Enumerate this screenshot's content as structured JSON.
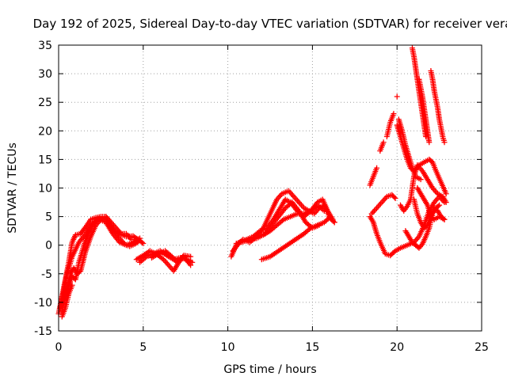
{
  "chart_data": {
    "type": "scatter",
    "title": "Day 192 of 2025, Sidereal Day-to-day VTEC variation (SDTVAR) for receiver vera",
    "xlabel": "GPS time / hours",
    "ylabel": "SDTVAR / TECUs",
    "xlim": [
      0,
      25
    ],
    "ylim": [
      -15,
      35
    ],
    "x_ticks": [
      0,
      5,
      10,
      15,
      20,
      25
    ],
    "y_ticks": [
      -15,
      -10,
      -5,
      0,
      5,
      10,
      15,
      20,
      25,
      30,
      35
    ],
    "grid": true,
    "legend": "none",
    "marker": "plus",
    "color": "#ff0000",
    "tracks": [
      [
        [
          0.0,
          -12.0
        ],
        [
          0.2,
          -9.0
        ],
        [
          0.4,
          -6.0
        ],
        [
          0.6,
          -3.0
        ],
        [
          0.8,
          0.5
        ],
        [
          1.0,
          1.8
        ],
        [
          1.3,
          2.0
        ],
        [
          1.6,
          3.2
        ],
        [
          1.9,
          4.5
        ],
        [
          2.2,
          4.8
        ],
        [
          2.5,
          5.0
        ],
        [
          2.8,
          5.0
        ],
        [
          3.0,
          4.0
        ],
        [
          3.3,
          2.5
        ],
        [
          3.6,
          1.2
        ],
        [
          3.9,
          0.2
        ],
        [
          4.2,
          -0.2
        ],
        [
          4.5,
          0.2
        ],
        [
          4.8,
          0.8
        ],
        [
          5.0,
          0.3
        ]
      ],
      [
        [
          0.1,
          -11.0
        ],
        [
          0.3,
          -8.0
        ],
        [
          0.5,
          -5.0
        ],
        [
          0.8,
          -2.0
        ],
        [
          1.2,
          0.5
        ],
        [
          1.6,
          2.0
        ],
        [
          2.0,
          3.8
        ],
        [
          2.4,
          4.5
        ],
        [
          2.8,
          4.0
        ],
        [
          3.2,
          2.0
        ],
        [
          3.6,
          0.5
        ],
        [
          4.0,
          0.0
        ],
        [
          4.4,
          0.5
        ],
        [
          4.8,
          1.2
        ]
      ],
      [
        [
          0.2,
          -11.5
        ],
        [
          0.4,
          -9.0
        ],
        [
          0.6,
          -7.0
        ],
        [
          0.8,
          -5.5
        ],
        [
          1.0,
          -6.0
        ],
        [
          1.2,
          -3.0
        ],
        [
          1.5,
          0.0
        ],
        [
          1.8,
          2.5
        ],
        [
          2.1,
          4.0
        ],
        [
          2.4,
          4.8
        ],
        [
          2.7,
          4.5
        ],
        [
          3.0,
          3.5
        ],
        [
          3.3,
          2.5
        ],
        [
          3.6,
          2.0
        ],
        [
          4.0,
          1.5
        ],
        [
          4.4,
          1.6
        ],
        [
          4.7,
          1.0
        ]
      ],
      [
        [
          0.3,
          -10.0
        ],
        [
          0.5,
          -8.0
        ],
        [
          0.7,
          -5.0
        ],
        [
          0.9,
          -4.0
        ],
        [
          1.1,
          -5.0
        ],
        [
          1.3,
          -4.5
        ],
        [
          1.6,
          -1.0
        ],
        [
          1.9,
          1.5
        ],
        [
          2.2,
          3.5
        ],
        [
          2.5,
          4.5
        ],
        [
          2.8,
          5.0
        ],
        [
          3.1,
          4.0
        ],
        [
          3.4,
          3.0
        ],
        [
          3.7,
          2.0
        ],
        [
          4.0,
          2.0
        ],
        [
          4.3,
          1.0
        ]
      ],
      [
        [
          0.2,
          -12.5
        ],
        [
          0.4,
          -11.0
        ],
        [
          0.6,
          -8.5
        ],
        [
          0.8,
          -7.0
        ]
      ],
      [
        [
          4.6,
          -2.5
        ],
        [
          5.0,
          -1.8
        ],
        [
          5.4,
          -1.0
        ],
        [
          5.8,
          -1.6
        ],
        [
          6.2,
          -2.5
        ],
        [
          6.5,
          -3.5
        ],
        [
          6.8,
          -4.5
        ],
        [
          7.1,
          -3.0
        ],
        [
          7.4,
          -2.0
        ],
        [
          7.8,
          -3.5
        ]
      ],
      [
        [
          4.8,
          -3.0
        ],
        [
          5.2,
          -2.0
        ],
        [
          5.6,
          -1.5
        ],
        [
          6.0,
          -1.0
        ],
        [
          6.4,
          -1.8
        ],
        [
          6.8,
          -2.5
        ],
        [
          7.2,
          -2.2
        ],
        [
          7.6,
          -2.5
        ],
        [
          7.9,
          -3.0
        ]
      ],
      [
        [
          5.5,
          -2.2
        ],
        [
          5.9,
          -1.5
        ],
        [
          6.3,
          -1.0
        ],
        [
          6.7,
          -2.0
        ],
        [
          7.0,
          -3.0
        ],
        [
          7.4,
          -1.8
        ],
        [
          7.8,
          -2.0
        ]
      ],
      [
        [
          10.2,
          -2.0
        ],
        [
          10.5,
          0.0
        ],
        [
          10.9,
          1.0
        ],
        [
          11.3,
          0.5
        ],
        [
          11.7,
          1.5
        ],
        [
          12.1,
          3.0
        ],
        [
          12.5,
          5.5
        ],
        [
          12.9,
          8.0
        ],
        [
          13.2,
          9.0
        ],
        [
          13.6,
          9.5
        ],
        [
          13.9,
          8.5
        ],
        [
          14.2,
          7.5
        ],
        [
          14.5,
          6.5
        ],
        [
          14.8,
          6.0
        ],
        [
          15.1,
          5.5
        ],
        [
          15.4,
          6.5
        ],
        [
          15.7,
          7.0
        ],
        [
          16.0,
          5.0
        ],
        [
          16.3,
          4.0
        ]
      ],
      [
        [
          10.3,
          -1.0
        ],
        [
          10.7,
          0.5
        ],
        [
          11.1,
          1.0
        ],
        [
          11.5,
          1.5
        ],
        [
          11.9,
          2.5
        ],
        [
          12.3,
          3.0
        ],
        [
          12.7,
          4.5
        ],
        [
          13.1,
          6.5
        ],
        [
          13.4,
          8.0
        ],
        [
          13.7,
          7.5
        ],
        [
          14.1,
          6.0
        ],
        [
          14.5,
          5.0
        ],
        [
          14.9,
          6.0
        ],
        [
          15.3,
          7.5
        ],
        [
          15.6,
          8.0
        ],
        [
          15.9,
          6.0
        ],
        [
          16.2,
          4.5
        ]
      ],
      [
        [
          10.5,
          0.3
        ],
        [
          10.9,
          0.6
        ],
        [
          11.3,
          1.0
        ],
        [
          11.7,
          1.2
        ],
        [
          12.1,
          1.8
        ],
        [
          12.5,
          2.5
        ],
        [
          12.9,
          3.5
        ],
        [
          13.3,
          4.5
        ],
        [
          13.7,
          5.0
        ],
        [
          14.1,
          5.5
        ],
        [
          14.5,
          5.5
        ],
        [
          14.9,
          6.0
        ],
        [
          15.3,
          7.0
        ],
        [
          15.7,
          6.0
        ]
      ],
      [
        [
          12.0,
          -2.5
        ],
        [
          12.5,
          -2.0
        ],
        [
          13.0,
          -1.0
        ],
        [
          13.5,
          0.0
        ],
        [
          14.0,
          1.0
        ],
        [
          14.5,
          2.0
        ],
        [
          14.9,
          3.0
        ],
        [
          15.3,
          3.5
        ],
        [
          15.7,
          4.0
        ],
        [
          16.0,
          4.8
        ],
        [
          16.3,
          4.0
        ]
      ],
      [
        [
          12.2,
          2.0
        ],
        [
          12.6,
          3.5
        ],
        [
          13.0,
          5.0
        ],
        [
          13.4,
          6.5
        ],
        [
          13.8,
          7.5
        ],
        [
          14.2,
          6.0
        ],
        [
          14.6,
          4.0
        ],
        [
          15.0,
          3.0
        ],
        [
          15.4,
          3.5
        ]
      ],
      [
        [
          18.4,
          10.5
        ],
        [
          18.6,
          12.0
        ],
        [
          18.8,
          13.5
        ]
      ],
      [
        [
          19.0,
          16.5
        ],
        [
          19.2,
          18.0
        ]
      ],
      [
        [
          19.4,
          19.0
        ],
        [
          19.6,
          21.5
        ],
        [
          19.8,
          23.0
        ]
      ],
      [
        [
          20.0,
          26.0
        ]
      ],
      [
        [
          18.4,
          5.0
        ],
        [
          18.6,
          4.0
        ],
        [
          18.8,
          2.0
        ],
        [
          19.0,
          0.5
        ],
        [
          19.3,
          -1.5
        ],
        [
          19.6,
          -1.8
        ],
        [
          19.9,
          -1.0
        ],
        [
          20.2,
          -0.5
        ],
        [
          20.6,
          0.0
        ],
        [
          21.0,
          0.5
        ],
        [
          21.3,
          1.5
        ],
        [
          21.6,
          3.5
        ],
        [
          21.9,
          6.0
        ],
        [
          22.2,
          7.5
        ],
        [
          22.5,
          8.5
        ],
        [
          22.8,
          7.5
        ]
      ],
      [
        [
          18.5,
          5.5
        ],
        [
          18.8,
          6.5
        ],
        [
          19.1,
          7.5
        ],
        [
          19.4,
          8.5
        ],
        [
          19.7,
          8.8
        ],
        [
          19.9,
          8.2
        ]
      ],
      [
        [
          20.2,
          7.0
        ],
        [
          20.4,
          6.0
        ],
        [
          20.6,
          6.8
        ],
        [
          20.8,
          8.0
        ],
        [
          21.0,
          12.0
        ],
        [
          21.2,
          14.0
        ],
        [
          21.5,
          13.0
        ],
        [
          21.8,
          11.5
        ],
        [
          22.1,
          10.0
        ],
        [
          22.4,
          9.0
        ],
        [
          22.7,
          8.5
        ],
        [
          22.9,
          7.5
        ]
      ],
      [
        [
          20.0,
          21.0
        ],
        [
          20.2,
          19.0
        ],
        [
          20.4,
          17.0
        ],
        [
          20.6,
          15.0
        ],
        [
          20.8,
          13.5
        ],
        [
          21.0,
          13.0
        ],
        [
          21.3,
          14.0
        ],
        [
          21.6,
          14.5
        ],
        [
          21.9,
          15.0
        ],
        [
          22.1,
          14.5
        ],
        [
          22.3,
          13.0
        ],
        [
          22.6,
          11.0
        ],
        [
          22.9,
          9.0
        ]
      ],
      [
        [
          20.1,
          22.0
        ],
        [
          20.3,
          20.0
        ],
        [
          20.5,
          17.5
        ],
        [
          20.7,
          15.5
        ],
        [
          20.9,
          13.5
        ],
        [
          21.1,
          12.0
        ],
        [
          21.4,
          11.5
        ]
      ],
      [
        [
          20.9,
          34.5
        ],
        [
          21.0,
          33.0
        ],
        [
          21.1,
          31.0
        ],
        [
          21.2,
          29.0
        ],
        [
          21.3,
          27.0
        ],
        [
          21.4,
          25.0
        ],
        [
          21.5,
          23.0
        ],
        [
          21.6,
          21.0
        ],
        [
          21.7,
          19.0
        ]
      ],
      [
        [
          21.3,
          29.0
        ],
        [
          21.4,
          27.5
        ],
        [
          21.5,
          26.0
        ],
        [
          21.6,
          24.0
        ],
        [
          21.7,
          22.0
        ],
        [
          21.8,
          20.0
        ],
        [
          21.9,
          18.0
        ]
      ],
      [
        [
          22.0,
          30.5
        ],
        [
          22.1,
          29.0
        ],
        [
          22.2,
          27.0
        ],
        [
          22.3,
          25.5
        ],
        [
          22.4,
          24.0
        ],
        [
          22.5,
          22.0
        ],
        [
          22.6,
          20.5
        ],
        [
          22.7,
          19.0
        ],
        [
          22.8,
          18.0
        ]
      ],
      [
        [
          21.2,
          10.0
        ],
        [
          21.4,
          9.0
        ],
        [
          21.6,
          8.0
        ],
        [
          21.8,
          7.0
        ],
        [
          22.0,
          5.0
        ],
        [
          22.2,
          4.5
        ],
        [
          22.5,
          5.0
        ],
        [
          22.8,
          4.5
        ]
      ],
      [
        [
          20.5,
          2.5
        ],
        [
          20.7,
          1.5
        ],
        [
          20.9,
          0.5
        ],
        [
          21.1,
          0.0
        ],
        [
          21.3,
          -0.5
        ],
        [
          21.5,
          0.2
        ],
        [
          21.7,
          1.5
        ],
        [
          21.9,
          3.0
        ],
        [
          22.1,
          5.5
        ],
        [
          22.3,
          6.5
        ],
        [
          22.5,
          7.0
        ]
      ],
      [
        [
          21.0,
          8.0
        ],
        [
          21.2,
          5.5
        ],
        [
          21.4,
          4.0
        ],
        [
          21.6,
          3.0
        ],
        [
          21.8,
          3.5
        ],
        [
          22.0,
          5.0
        ],
        [
          22.2,
          6.5
        ],
        [
          22.4,
          6.0
        ],
        [
          22.6,
          5.0
        ],
        [
          22.8,
          4.5
        ]
      ]
    ]
  }
}
